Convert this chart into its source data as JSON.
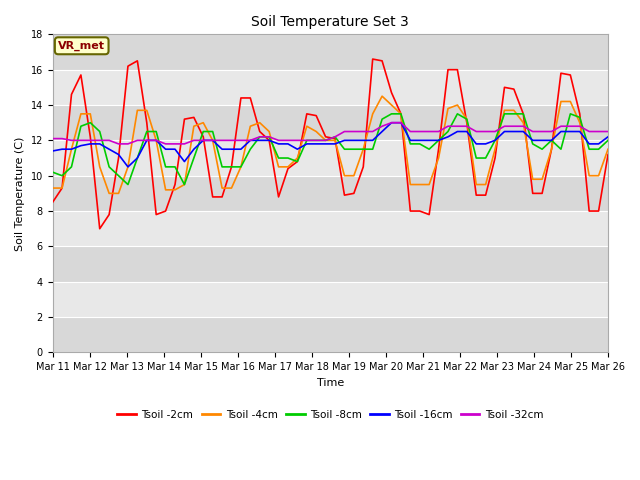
{
  "title": "Soil Temperature Set 3",
  "xlabel": "Time",
  "ylabel": "Soil Temperature (C)",
  "ylim": [
    0,
    18
  ],
  "yticks": [
    0,
    2,
    4,
    6,
    8,
    10,
    12,
    14,
    16,
    18
  ],
  "xtick_labels": [
    "Mar 11",
    "Mar 12",
    "Mar 13",
    "Mar 14",
    "Mar 15",
    "Mar 16",
    "Mar 17",
    "Mar 18",
    "Mar 19",
    "Mar 20",
    "Mar 21",
    "Mar 22",
    "Mar 23",
    "Mar 24",
    "Mar 25",
    "Mar 26"
  ],
  "annotation_text": "VR_met",
  "legend_labels": [
    "Tsoil -2cm",
    "Tsoil -4cm",
    "Tsoil -8cm",
    "Tsoil -16cm",
    "Tsoil -32cm"
  ],
  "legend_colors": [
    "#ff0000",
    "#ff8800",
    "#00cc00",
    "#0000ff",
    "#cc00cc"
  ],
  "title_fontsize": 10,
  "tick_fontsize": 7,
  "label_fontsize": 8,
  "fig_bg": "#d8d8d8",
  "plot_bg_light": "#e8e8e8",
  "plot_bg_dark": "#d0d0d0",
  "series_2cm": [
    8.5,
    9.3,
    14.6,
    15.7,
    12.2,
    7.0,
    7.8,
    11.0,
    16.2,
    16.5,
    13.0,
    7.8,
    8.0,
    9.5,
    13.2,
    13.3,
    12.2,
    8.8,
    8.8,
    10.5,
    14.4,
    14.4,
    12.5,
    12.0,
    8.8,
    10.4,
    10.8,
    13.5,
    13.4,
    12.2,
    12.1,
    8.9,
    9.0,
    10.5,
    16.6,
    16.5,
    14.7,
    13.5,
    8.0,
    8.0,
    7.8,
    11.5,
    16.0,
    16.0,
    13.0,
    8.9,
    8.9,
    11.0,
    15.0,
    14.9,
    13.5,
    9.0,
    9.0,
    11.5,
    15.8,
    15.7,
    13.5,
    8.0,
    8.0,
    11.2
  ],
  "series_4cm": [
    9.3,
    9.3,
    11.5,
    13.5,
    13.5,
    10.5,
    9.0,
    9.0,
    10.5,
    13.7,
    13.7,
    12.0,
    9.2,
    9.2,
    9.5,
    12.8,
    13.0,
    12.0,
    9.3,
    9.3,
    10.5,
    12.8,
    13.0,
    12.5,
    10.5,
    10.5,
    11.0,
    12.8,
    12.5,
    12.0,
    12.0,
    10.0,
    10.0,
    11.5,
    13.5,
    14.5,
    14.0,
    13.5,
    9.5,
    9.5,
    9.5,
    11.0,
    13.8,
    14.0,
    13.2,
    9.5,
    9.5,
    11.5,
    13.7,
    13.7,
    13.0,
    9.8,
    9.8,
    11.5,
    14.2,
    14.2,
    13.0,
    10.0,
    10.0,
    11.5
  ],
  "series_8cm": [
    10.2,
    10.0,
    10.5,
    12.8,
    13.0,
    12.5,
    10.5,
    10.0,
    9.5,
    11.0,
    12.5,
    12.5,
    10.5,
    10.5,
    9.5,
    11.0,
    12.5,
    12.5,
    10.5,
    10.5,
    10.5,
    11.5,
    12.2,
    12.2,
    11.0,
    11.0,
    10.8,
    12.0,
    12.0,
    12.0,
    12.2,
    11.5,
    11.5,
    11.5,
    11.5,
    13.2,
    13.5,
    13.5,
    11.8,
    11.8,
    11.5,
    12.0,
    12.5,
    13.5,
    13.2,
    11.0,
    11.0,
    12.0,
    13.5,
    13.5,
    13.5,
    11.8,
    11.5,
    12.0,
    11.5,
    13.5,
    13.3,
    11.5,
    11.5,
    12.0
  ],
  "series_16cm": [
    11.4,
    11.5,
    11.5,
    11.7,
    11.8,
    11.8,
    11.5,
    11.2,
    10.5,
    11.0,
    12.0,
    12.0,
    11.5,
    11.5,
    10.8,
    11.5,
    12.0,
    12.0,
    11.5,
    11.5,
    11.5,
    12.0,
    12.0,
    12.0,
    11.8,
    11.8,
    11.5,
    11.8,
    11.8,
    11.8,
    11.8,
    12.0,
    12.0,
    12.0,
    12.0,
    12.5,
    13.0,
    13.0,
    12.0,
    12.0,
    12.0,
    12.0,
    12.2,
    12.5,
    12.5,
    11.8,
    11.8,
    12.0,
    12.5,
    12.5,
    12.5,
    12.0,
    12.0,
    12.0,
    12.5,
    12.5,
    12.5,
    11.8,
    11.8,
    12.2
  ],
  "series_32cm": [
    12.1,
    12.1,
    12.0,
    12.0,
    12.0,
    12.0,
    12.0,
    11.8,
    11.8,
    12.0,
    12.0,
    12.0,
    11.8,
    11.8,
    11.8,
    12.0,
    12.0,
    12.0,
    12.0,
    12.0,
    12.0,
    12.0,
    12.2,
    12.2,
    12.0,
    12.0,
    12.0,
    12.0,
    12.0,
    12.0,
    12.2,
    12.5,
    12.5,
    12.5,
    12.5,
    12.8,
    13.0,
    13.0,
    12.5,
    12.5,
    12.5,
    12.5,
    12.8,
    12.8,
    12.8,
    12.5,
    12.5,
    12.5,
    12.8,
    12.8,
    12.8,
    12.5,
    12.5,
    12.5,
    12.8,
    12.8,
    12.8,
    12.5,
    12.5,
    12.5
  ]
}
